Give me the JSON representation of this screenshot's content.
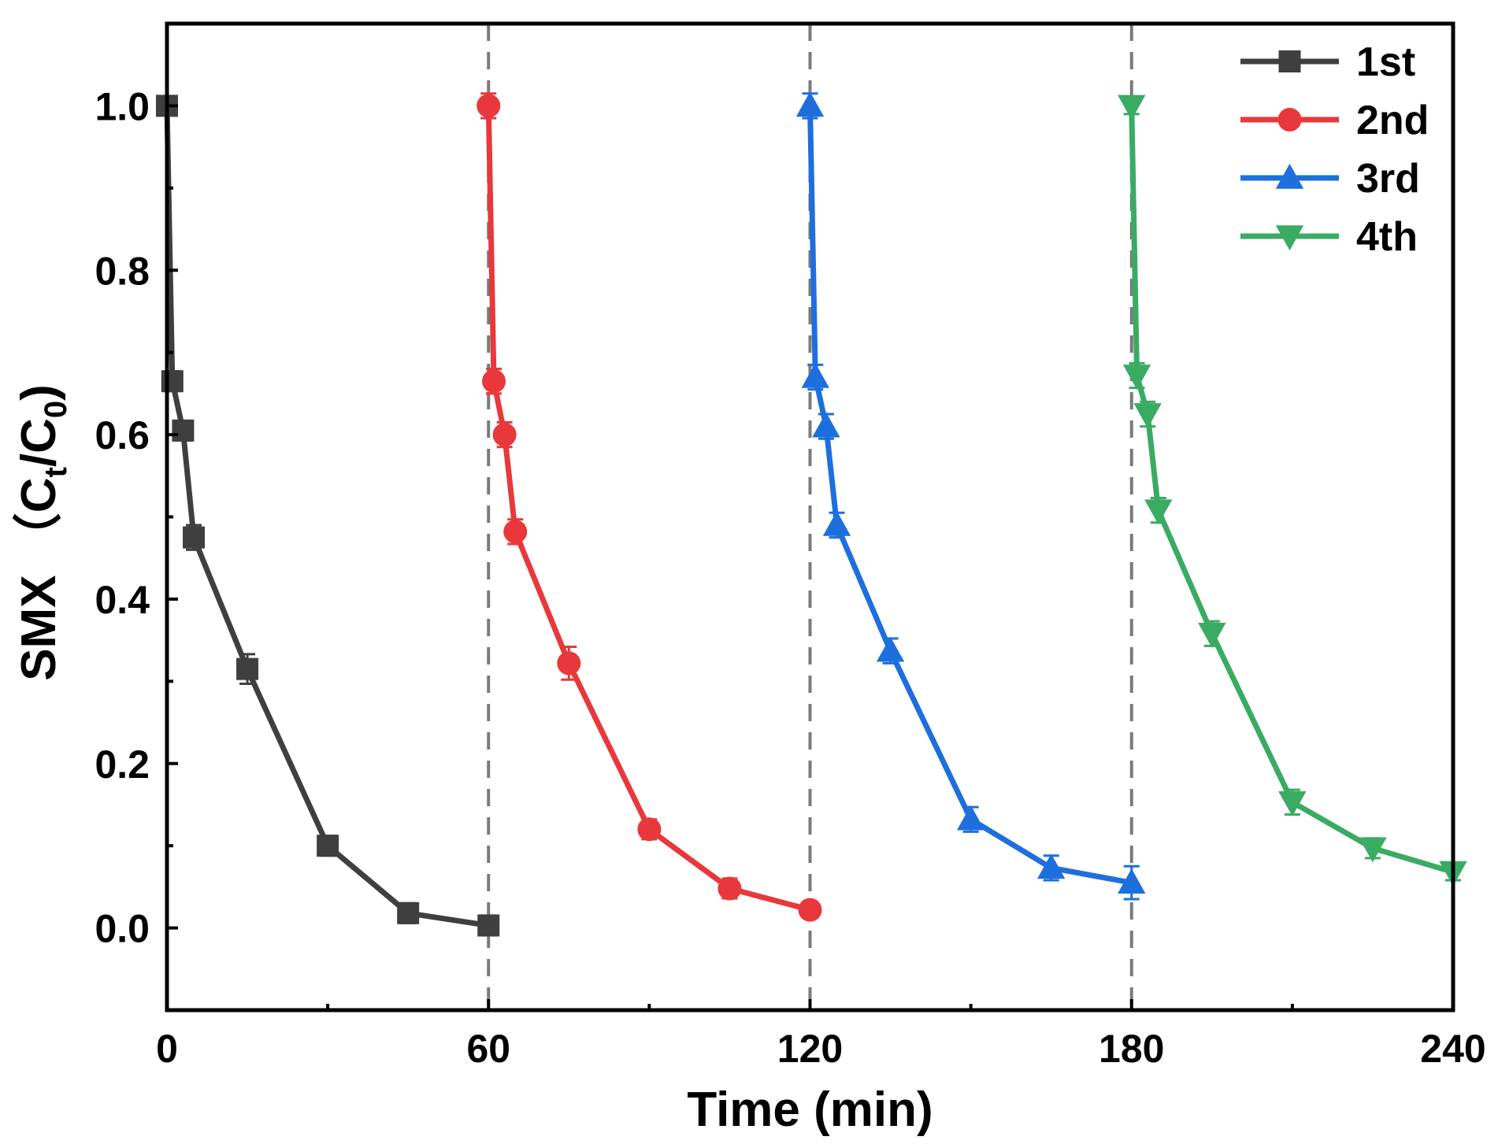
{
  "chart_data": {
    "type": "line",
    "xlabel": "Time (min)",
    "ylabel": {
      "prefix": "SMX （C",
      "sub1": "t",
      "mid": "/C",
      "sub2": "0",
      "suffix": ")"
    },
    "xlim": [
      0,
      240
    ],
    "ylim": [
      -0.1,
      1.1
    ],
    "xticks": [
      0,
      60,
      120,
      180,
      240
    ],
    "xtick_labels": [
      "0",
      "60",
      "120",
      "180",
      "240"
    ],
    "yticks": [
      0.0,
      0.2,
      0.4,
      0.6,
      0.8,
      1.0
    ],
    "ytick_labels": [
      "0.0",
      "0.2",
      "0.4",
      "0.6",
      "0.8",
      "1.0"
    ],
    "cycle_dividers": [
      60,
      120,
      180
    ],
    "grid": false,
    "legend_position": "top-right",
    "series": [
      {
        "name": "1st",
        "color": "#3f3f3f",
        "marker": "square",
        "x": [
          0,
          1,
          3,
          5,
          15,
          30,
          45,
          60
        ],
        "y": [
          1.0,
          0.665,
          0.605,
          0.475,
          0.315,
          0.1,
          0.018,
          0.003
        ],
        "err": [
          0.01,
          0.012,
          0.012,
          0.015,
          0.018,
          0.012,
          0.012,
          0.012
        ]
      },
      {
        "name": "2nd",
        "color": "#e8383b",
        "marker": "circle",
        "x": [
          60,
          61,
          63,
          65,
          75,
          90,
          105,
          120
        ],
        "y": [
          1.0,
          0.665,
          0.6,
          0.482,
          0.322,
          0.12,
          0.048,
          0.022
        ],
        "err": [
          0.015,
          0.015,
          0.015,
          0.015,
          0.02,
          0.012,
          0.012,
          0.01
        ]
      },
      {
        "name": "3rd",
        "color": "#1e6fde",
        "marker": "triangle-up",
        "x": [
          120,
          121,
          123,
          125,
          135,
          150,
          165,
          180
        ],
        "y": [
          1.0,
          0.67,
          0.61,
          0.49,
          0.337,
          0.132,
          0.073,
          0.055
        ],
        "err": [
          0.015,
          0.015,
          0.015,
          0.015,
          0.015,
          0.015,
          0.015,
          0.02
        ]
      },
      {
        "name": "4th",
        "color": "#3aab63",
        "marker": "triangle-down",
        "x": [
          180,
          181,
          183,
          185,
          195,
          210,
          225,
          240
        ],
        "y": [
          1.0,
          0.672,
          0.625,
          0.508,
          0.358,
          0.153,
          0.097,
          0.068
        ],
        "err": [
          0.01,
          0.015,
          0.015,
          0.015,
          0.015,
          0.015,
          0.012,
          0.01
        ]
      }
    ]
  }
}
